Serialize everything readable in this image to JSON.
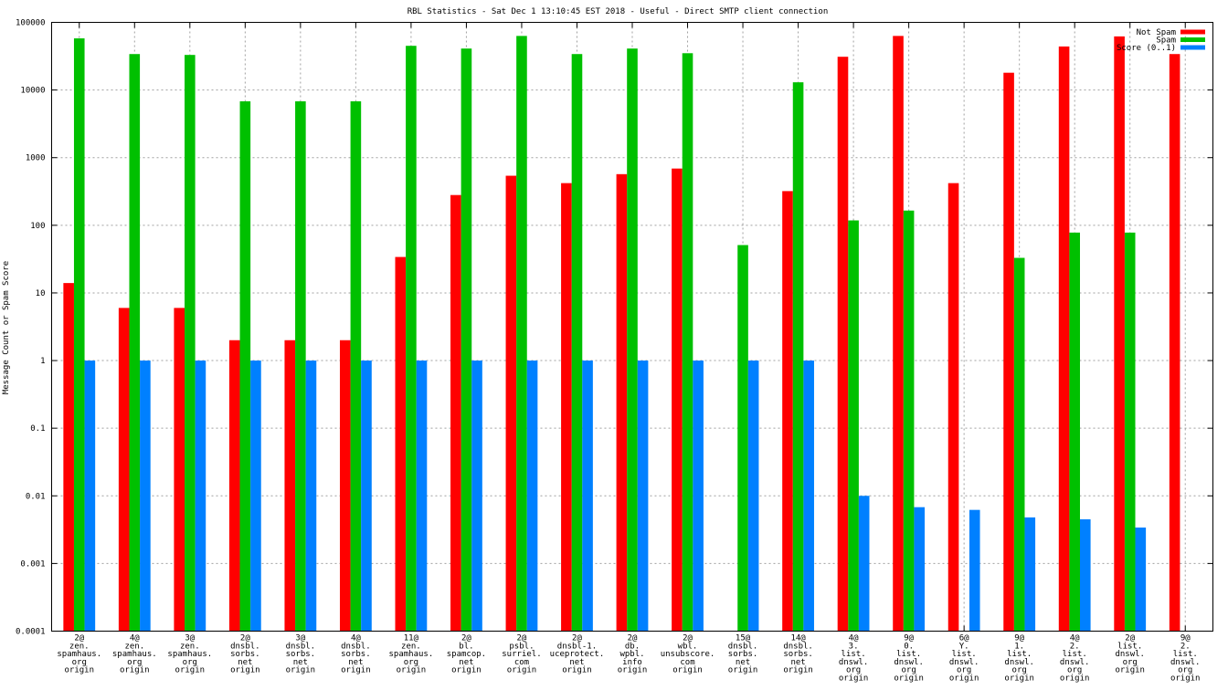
{
  "chart_data": {
    "type": "bar",
    "title": "RBL Statistics - Sat Dec  1 13:10:45 EST 2018 - Useful - Direct SMTP client connection",
    "ylabel": "Message Count or Spam Score",
    "xlabel": "",
    "yscale": "log",
    "ylim": [
      0.0001,
      100000
    ],
    "yticks": [
      "0.0001",
      "0.001",
      "0.01",
      "0.1",
      "1",
      "10",
      "100",
      "1000",
      "10000",
      "100000"
    ],
    "grid": true,
    "legend_position": "top-right",
    "categories": [
      [
        "2@",
        "zen.",
        "spamhaus.",
        "org",
        "origin"
      ],
      [
        "4@",
        "zen.",
        "spamhaus.",
        "org",
        "origin"
      ],
      [
        "3@",
        "zen.",
        "spamhaus.",
        "org",
        "origin"
      ],
      [
        "2@",
        "dnsbl.",
        "sorbs.",
        "net",
        "origin"
      ],
      [
        "3@",
        "dnsbl.",
        "sorbs.",
        "net",
        "origin"
      ],
      [
        "4@",
        "dnsbl.",
        "sorbs.",
        "net",
        "origin"
      ],
      [
        "11@",
        "zen.",
        "spamhaus.",
        "org",
        "origin"
      ],
      [
        "2@",
        "bl.",
        "spamcop.",
        "net",
        "origin"
      ],
      [
        "2@",
        "psbl.",
        "surriel.",
        "com",
        "origin"
      ],
      [
        "2@",
        "dnsbl-1.",
        "uceprotect.",
        "net",
        "origin"
      ],
      [
        "2@",
        "db.",
        "wpbl.",
        "info",
        "origin"
      ],
      [
        "2@",
        "wbl.",
        "unsubscore.",
        "com",
        "origin"
      ],
      [
        "15@",
        "dnsbl.",
        "sorbs.",
        "net",
        "origin"
      ],
      [
        "14@",
        "dnsbl.",
        "sorbs.",
        "net",
        "origin"
      ],
      [
        "4@",
        "3.",
        "list.",
        "dnswl.",
        "org",
        "origin"
      ],
      [
        "9@",
        "0.",
        "list.",
        "dnswl.",
        "org",
        "origin"
      ],
      [
        "6@",
        "Y.",
        "list.",
        "dnswl.",
        "org",
        "origin"
      ],
      [
        "9@",
        "1.",
        "list.",
        "dnswl.",
        "org",
        "origin"
      ],
      [
        "4@",
        "2.",
        "list.",
        "dnswl.",
        "org",
        "origin"
      ],
      [
        "2@",
        "list.",
        "dnswl.",
        "org",
        "origin"
      ],
      [
        "9@",
        "2.",
        "list.",
        "dnswl.",
        "org",
        "origin"
      ]
    ],
    "series": [
      {
        "name": "Not Spam",
        "color": "#ff0000",
        "values": [
          14,
          6,
          6,
          2,
          2,
          2,
          34,
          280,
          540,
          420,
          570,
          690,
          null,
          320,
          31000,
          63000,
          420,
          18000,
          44000,
          62000,
          34000
        ]
      },
      {
        "name": "Spam",
        "color": "#00c000",
        "values": [
          58000,
          34000,
          33000,
          6800,
          6800,
          6800,
          45000,
          41000,
          63000,
          34000,
          41000,
          35000,
          51,
          13000,
          118,
          165,
          null,
          33,
          78,
          78,
          null
        ]
      },
      {
        "name": "Score (0..1)",
        "color": "#0080ff",
        "values": [
          1,
          1,
          1,
          1,
          1,
          1,
          1,
          1,
          1,
          1,
          1,
          1,
          1,
          1,
          0.01,
          0.0068,
          0.0062,
          0.0048,
          0.0045,
          0.0034,
          null
        ]
      }
    ]
  }
}
